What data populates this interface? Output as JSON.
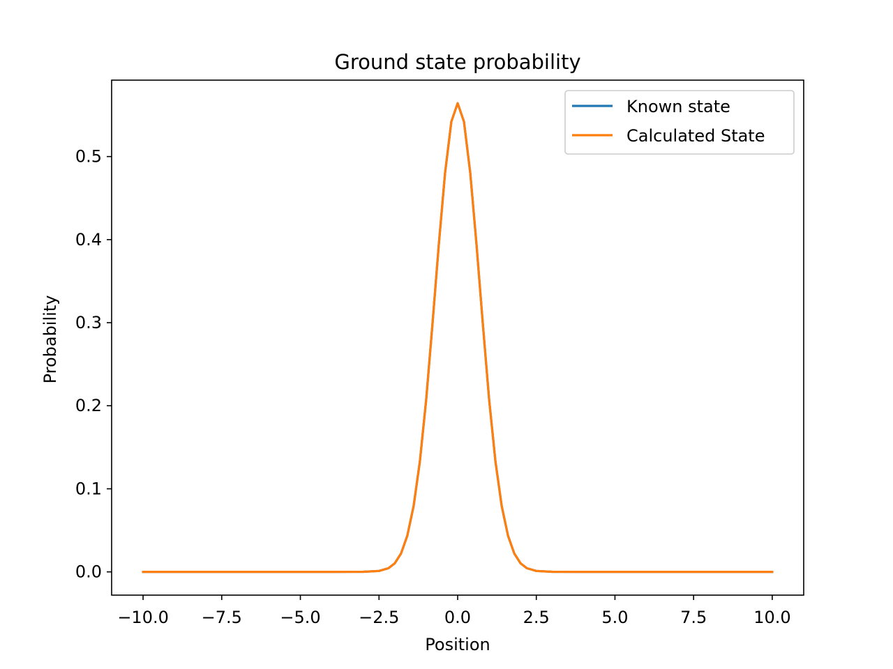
{
  "chart_data": {
    "type": "line",
    "title": "Ground state probability",
    "xlabel": "Position",
    "ylabel": "Probability",
    "xlim": [
      -11.0,
      11.0
    ],
    "ylim": [
      -0.028,
      0.592
    ],
    "xticks": [
      -10.0,
      -7.5,
      -5.0,
      -2.5,
      0.0,
      2.5,
      5.0,
      7.5,
      10.0
    ],
    "xtick_labels": [
      "−10.0",
      "−7.5",
      "−5.0",
      "−2.5",
      "0.0",
      "2.5",
      "5.0",
      "7.5",
      "10.0"
    ],
    "yticks": [
      0.0,
      0.1,
      0.2,
      0.3,
      0.4,
      0.5
    ],
    "ytick_labels": [
      "0.0",
      "0.1",
      "0.2",
      "0.3",
      "0.4",
      "0.5"
    ],
    "grid": false,
    "legend_position": "top-right",
    "x": [
      -10.0,
      -8.0,
      -6.0,
      -4.0,
      -3.0,
      -2.5,
      -2.2,
      -2.0,
      -1.8,
      -1.6,
      -1.4,
      -1.2,
      -1.0,
      -0.8,
      -0.6,
      -0.4,
      -0.2,
      0.0,
      0.2,
      0.4,
      0.6,
      0.8,
      1.0,
      1.2,
      1.4,
      1.6,
      1.8,
      2.0,
      2.2,
      2.5,
      3.0,
      4.0,
      6.0,
      8.0,
      10.0
    ],
    "series": [
      {
        "name": "Known state",
        "color": "#1f77b4",
        "values": [
          0.0,
          0.0,
          0.0,
          0.0,
          0.0001,
          0.0011,
          0.0044,
          0.0103,
          0.0221,
          0.0436,
          0.0793,
          0.1333,
          0.2076,
          0.2987,
          0.3938,
          0.4804,
          0.5421,
          0.5642,
          0.5421,
          0.4804,
          0.3938,
          0.2987,
          0.2076,
          0.1333,
          0.0793,
          0.0436,
          0.0221,
          0.0103,
          0.0044,
          0.0011,
          0.0001,
          0.0,
          0.0,
          0.0,
          0.0
        ]
      },
      {
        "name": "Calculated State",
        "color": "#ff7f0e",
        "values": [
          0.0,
          0.0,
          0.0,
          0.0,
          0.0001,
          0.0011,
          0.0044,
          0.0103,
          0.0221,
          0.0436,
          0.0793,
          0.1333,
          0.2076,
          0.2987,
          0.3938,
          0.4804,
          0.5421,
          0.5642,
          0.5421,
          0.4804,
          0.3938,
          0.2987,
          0.2076,
          0.1333,
          0.0793,
          0.0436,
          0.0221,
          0.0103,
          0.0044,
          0.0011,
          0.0001,
          0.0,
          0.0,
          0.0,
          0.0
        ]
      }
    ]
  }
}
